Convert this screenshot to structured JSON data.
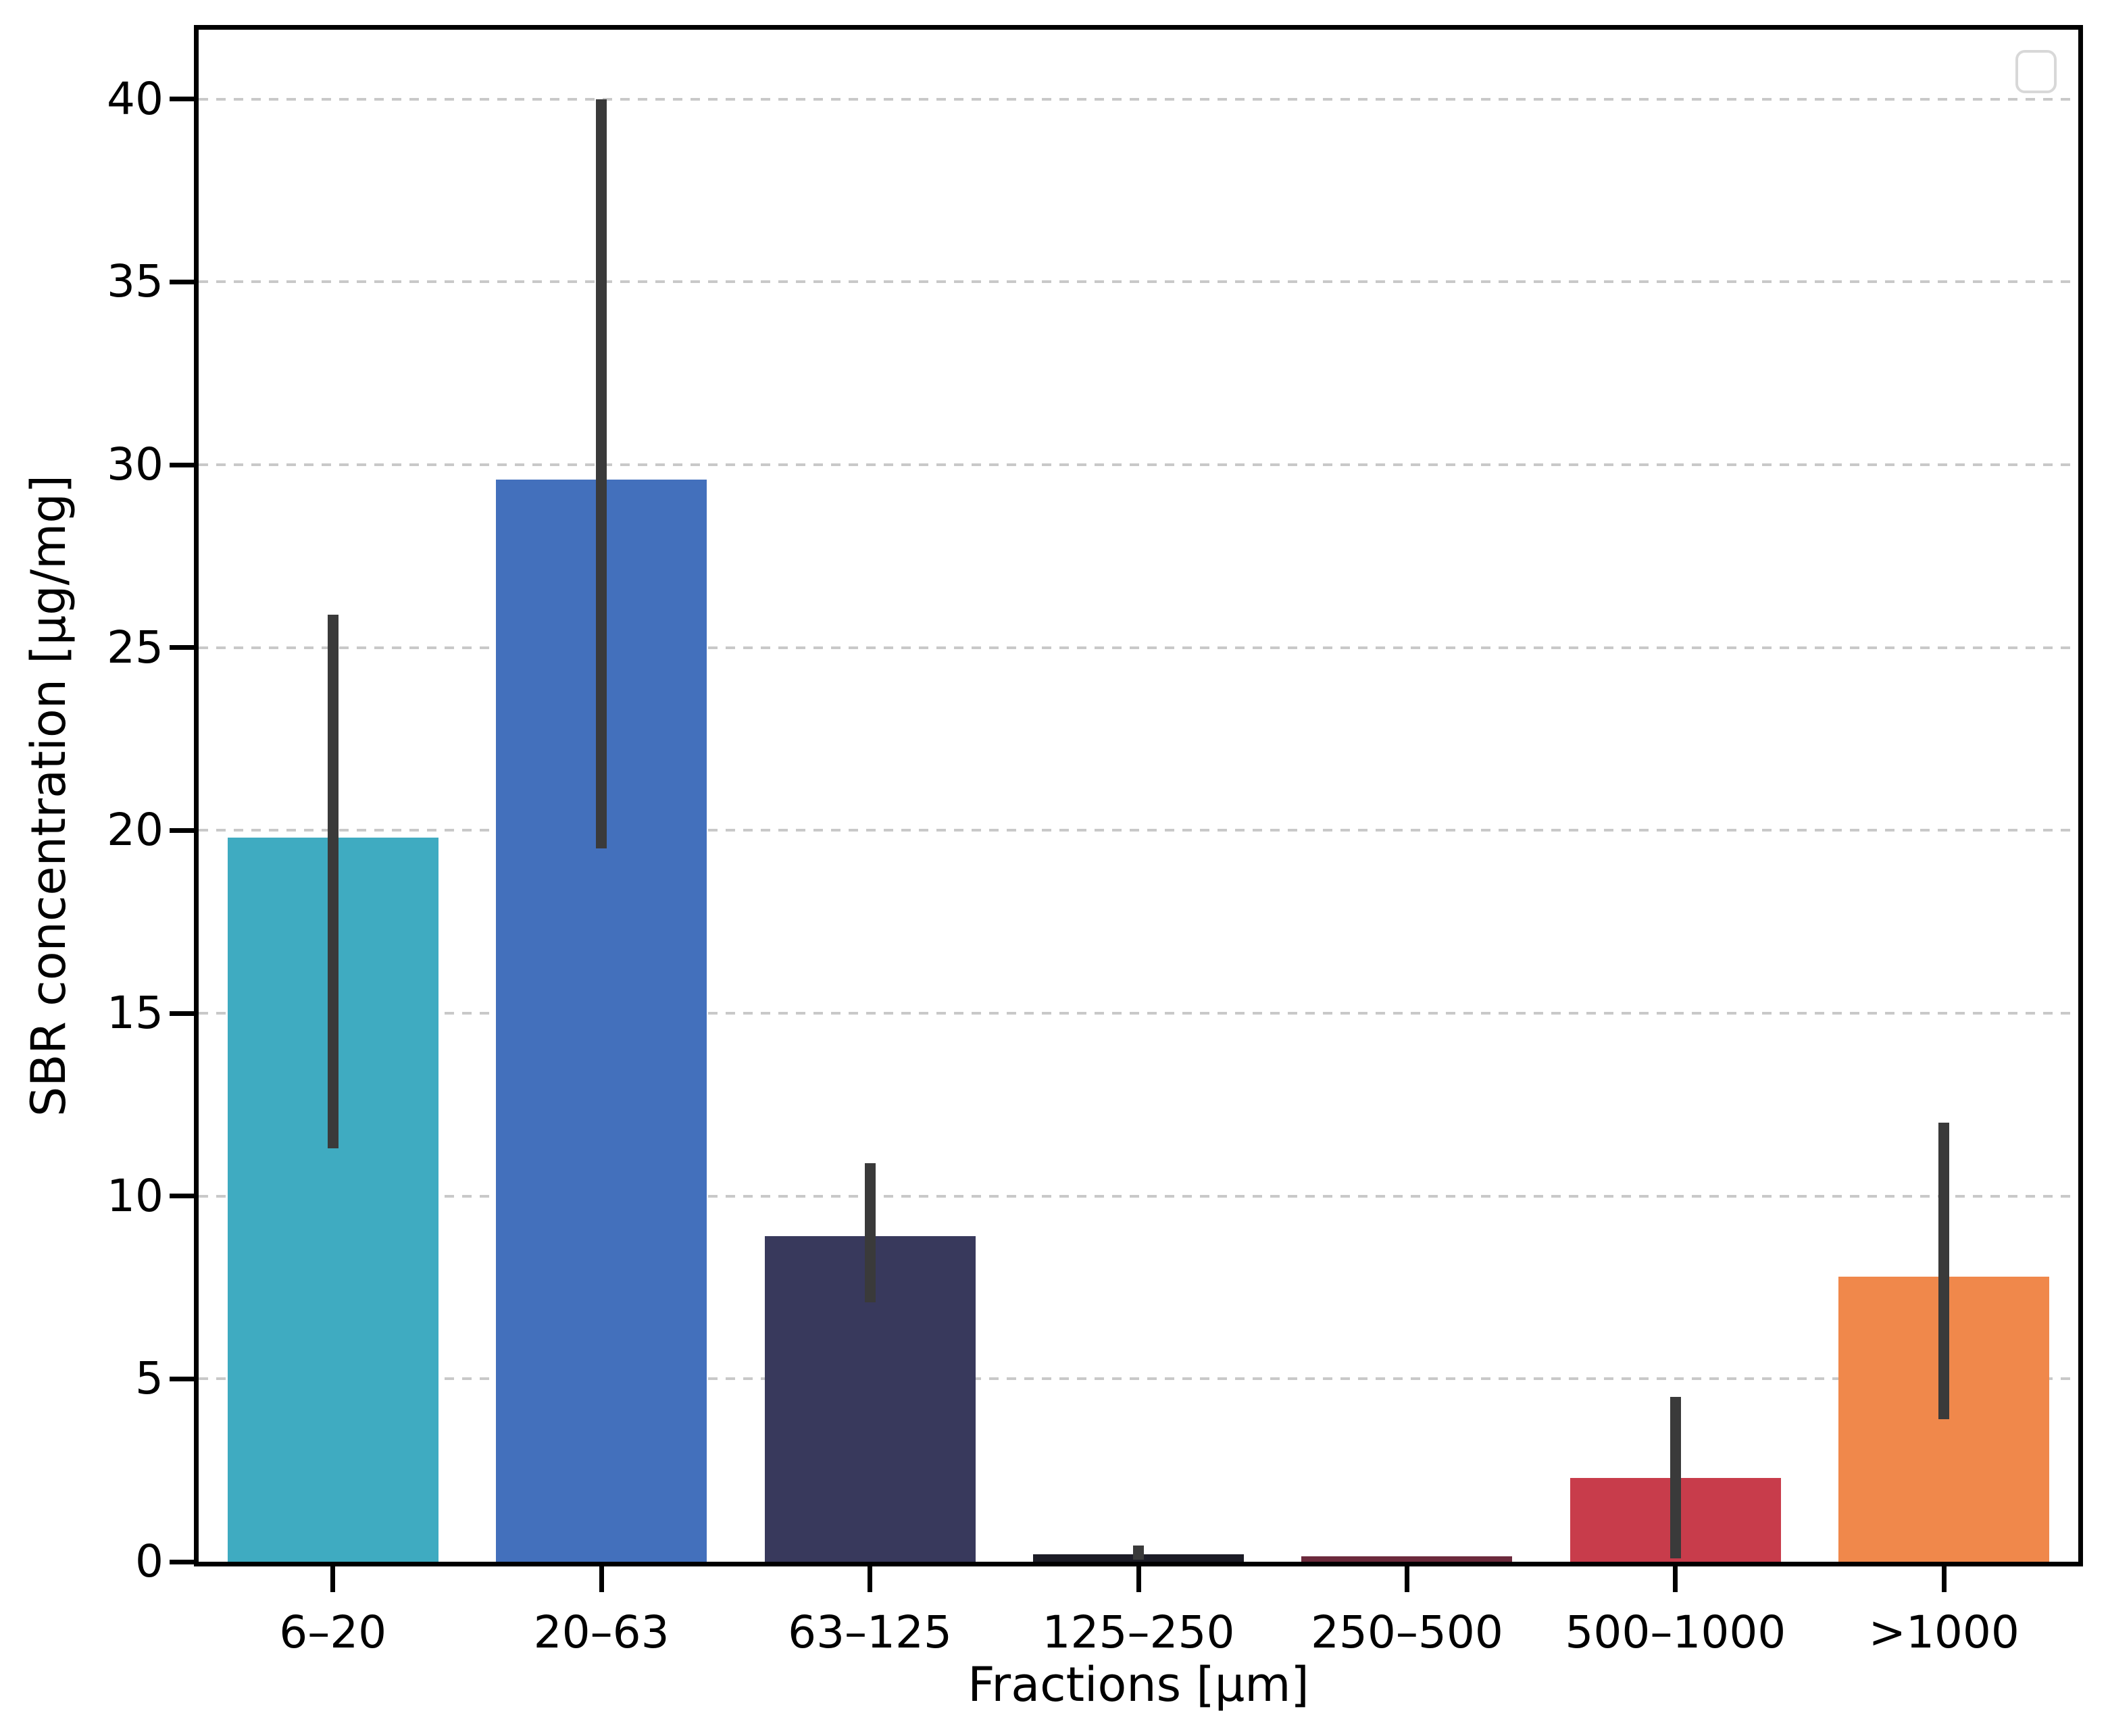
{
  "figure": {
    "background_color": "#ffffff",
    "spine_color": "#000000",
    "grid_color": "#c9c9c9",
    "grid_style": "dashed-horizontal",
    "error_bar_color": "#3a3a3a",
    "legend": {
      "state": "empty",
      "border_color": "#d8d8d8",
      "position": "upper-right"
    }
  },
  "chart_data": {
    "type": "bar",
    "title": "",
    "xlabel": "Fractions [µm]",
    "ylabel": "SBR concentration [µg/mg]",
    "categories": [
      "6–20",
      "20–63",
      "63–125",
      "125–250",
      "250–500",
      "500–1000",
      ">1000"
    ],
    "values": [
      19.8,
      29.6,
      8.9,
      0.2,
      0.15,
      2.3,
      7.8
    ],
    "error_low": [
      11.3,
      19.5,
      7.1,
      0.05,
      null,
      0.1,
      3.9
    ],
    "error_high": [
      25.9,
      40.0,
      10.9,
      0.45,
      null,
      4.5,
      12.0
    ],
    "bar_colors": [
      "#3fabc1",
      "#4370bc",
      "#38395c",
      "#1c1c26",
      "#6c2a3c",
      "#c83c4b",
      "#f0884b"
    ],
    "ytick_labels": [
      "0",
      "5",
      "10",
      "15",
      "20",
      "25",
      "30",
      "35",
      "40"
    ],
    "yticks": [
      0,
      5,
      10,
      15,
      20,
      25,
      30,
      35,
      40
    ],
    "ylim": [
      0,
      41.9
    ],
    "grid": true,
    "legend_entries": []
  }
}
